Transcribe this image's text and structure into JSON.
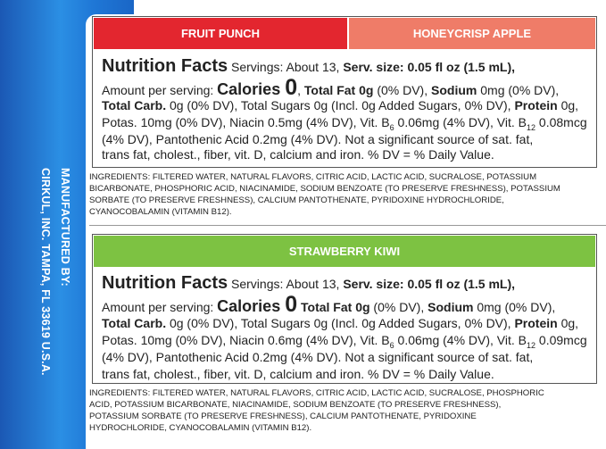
{
  "manufacturer": [
    "MANUFACTURED BY:",
    "CIRKUL, INC. TAMPA, FL 33619 U.S.A."
  ],
  "panels": [
    {
      "tabs": [
        {
          "label": "FRUIT PUNCH",
          "color": "#e3262f"
        },
        {
          "label": "HONEYCRISP APPLE",
          "color": "#ef7c68"
        }
      ],
      "nutrition": [
        [
          {
            "t": "Nutrition Facts",
            "s": "h"
          },
          {
            "t": " Servings: About 13, ",
            "s": "n"
          },
          {
            "t": "Serv. size: 0.05 fl oz (1.5 mL),",
            "s": "b"
          }
        ],
        [
          {
            "t": "Amount per serving: ",
            "s": "n"
          },
          {
            "t": "Calories ",
            "s": "c"
          },
          {
            "t": "0",
            "s": "z"
          },
          {
            "t": ", ",
            "s": "n"
          },
          {
            "t": "Total Fat 0g",
            "s": "b"
          },
          {
            "t": " (0% DV), ",
            "s": "n"
          },
          {
            "t": "Sodium",
            "s": "b"
          },
          {
            "t": " 0mg (0% DV),",
            "s": "n"
          }
        ],
        [
          {
            "t": "Total Carb.",
            "s": "b"
          },
          {
            "t": " 0g (0% DV), Total Sugars 0g (Incl. 0g Added Sugars, 0% DV), ",
            "s": "n"
          },
          {
            "t": "Protein",
            "s": "b"
          },
          {
            "t": " 0g,",
            "s": "n"
          }
        ],
        [
          {
            "t": "Potas. 10mg (0% DV), Niacin 0.5mg (4% DV), Vit. B",
            "s": "n"
          },
          {
            "t": "6",
            "s": "sub"
          },
          {
            "t": " 0.06mg (4% DV), Vit. B",
            "s": "n"
          },
          {
            "t": "12",
            "s": "sub"
          },
          {
            "t": " 0.08mcg",
            "s": "n"
          }
        ],
        [
          {
            "t": "(4% DV), Pantothenic Acid 0.2mg (4% DV). Not a significant source of sat. fat,",
            "s": "n"
          }
        ],
        [
          {
            "t": "trans fat, cholest., fiber, vit. D, calcium and iron. % DV = % Daily Value.",
            "s": "n"
          }
        ]
      ],
      "ingredients": [
        "INGREDIENTS: FILTERED WATER, NATURAL FLAVORS, CITRIC ACID, LACTIC ACID, SUCRALOSE, POTASSIUM",
        "BICARBONATE, PHOSPHORIC ACID, NIACINAMIDE, SODIUM BENZOATE (TO PRESERVE FRESHNESS), POTASSIUM",
        "SORBATE (TO PRESERVE FRESHNESS), CALCIUM PANTOTHENATE, PYRIDOXINE HYDROCHLORIDE,",
        "CYANOCOBALAMIN (VITAMIN B12)."
      ]
    },
    {
      "tabs": [
        {
          "label": "STRAWBERRY KIWI",
          "color": "#7dc242"
        }
      ],
      "nutrition": [
        [
          {
            "t": "Nutrition Facts",
            "s": "h"
          },
          {
            "t": " Servings: About 13, ",
            "s": "n"
          },
          {
            "t": "Serv. size: 0.05 fl oz (1.5 mL),",
            "s": "b"
          }
        ],
        [
          {
            "t": "Amount per serving: ",
            "s": "n"
          },
          {
            "t": "Calories ",
            "s": "c"
          },
          {
            "t": "0",
            "s": "z"
          },
          {
            "t": " Total Fat 0g",
            "s": "b"
          },
          {
            "t": " (0% DV), ",
            "s": "n"
          },
          {
            "t": "Sodium",
            "s": "b"
          },
          {
            "t": " 0mg (0% DV),",
            "s": "n"
          }
        ],
        [
          {
            "t": "Total Carb.",
            "s": "b"
          },
          {
            "t": " 0g (0% DV), Total Sugars 0g (Incl. 0g Added Sugars, 0% DV), ",
            "s": "n"
          },
          {
            "t": "Protein",
            "s": "b"
          },
          {
            "t": " 0g,",
            "s": "n"
          }
        ],
        [
          {
            "t": "Potas. 10mg (0% DV), Niacin 0.6mg (4% DV), Vit. B",
            "s": "n"
          },
          {
            "t": "6",
            "s": "sub"
          },
          {
            "t": " 0.06mg (4% DV), Vit. B",
            "s": "n"
          },
          {
            "t": "12",
            "s": "sub"
          },
          {
            "t": " 0.09mcg",
            "s": "n"
          }
        ],
        [
          {
            "t": "(4% DV), Pantothenic Acid 0.2mg (4% DV). Not a significant source of sat. fat,",
            "s": "n"
          }
        ],
        [
          {
            "t": "trans fat, cholest., fiber, vit. D, calcium and iron. % DV = % Daily Value.",
            "s": "n"
          }
        ]
      ],
      "ingredients": [
        "INGREDIENTS: FILTERED WATER, NATURAL FLAVORS, CITRIC ACID, LACTIC ACID, SUCRALOSE, PHOSPHORIC",
        "ACID, POTASSIUM BICARBONATE, NIACINAMIDE, SODIUM BENZOATE (TO PRESERVE FRESHNESS),",
        "POTASSIUM SORBATE (TO PRESERVE FRESHNESS), CALCIUM PANTOTHENATE, PYRIDOXINE",
        "HYDROCHLORIDE, CYANOCOBALAMIN (VITAMIN B12)."
      ]
    }
  ]
}
